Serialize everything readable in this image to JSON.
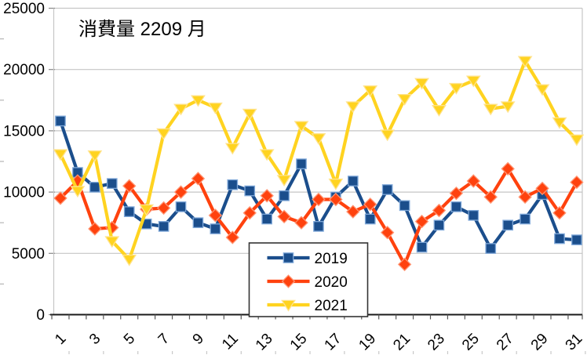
{
  "chart_data": {
    "type": "line",
    "title": "消費量 2209 月",
    "xlabel": "",
    "ylabel": "",
    "x": [
      1,
      2,
      3,
      4,
      5,
      6,
      7,
      8,
      9,
      10,
      11,
      12,
      13,
      14,
      15,
      16,
      17,
      18,
      19,
      20,
      21,
      22,
      23,
      24,
      25,
      26,
      27,
      28,
      29,
      30,
      31
    ],
    "x_tick_labels": [
      "1",
      "3",
      "5",
      "7",
      "9",
      "11",
      "13",
      "15",
      "17",
      "19",
      "21",
      "23",
      "25",
      "27",
      "29",
      "31"
    ],
    "x_tick_days": [
      1,
      3,
      5,
      7,
      9,
      11,
      13,
      15,
      17,
      19,
      21,
      23,
      25,
      27,
      29,
      31
    ],
    "x_label_rotation_deg": -45,
    "y_ticks": [
      0,
      5000,
      10000,
      15000,
      20000,
      25000
    ],
    "y_tick_labels": [
      "0",
      "5000",
      "10000",
      "15000",
      "20000",
      "25000"
    ],
    "ylim": [
      0,
      25000
    ],
    "grid": true,
    "grid_color": "#c6c6c6",
    "axis_color": "#1a1a1a",
    "background_color": "#ffffff",
    "legend_position": "inside-bottom-center",
    "legend_border_color": "#333333",
    "series": [
      {
        "name": "2019",
        "color": "#1B4E8C",
        "marker": "square",
        "marker_edge_color": "#7FA8D9",
        "values": [
          15800,
          11600,
          10400,
          10700,
          8400,
          7400,
          7200,
          8800,
          7500,
          7000,
          10600,
          10100,
          7800,
          9700,
          12300,
          7200,
          9600,
          10900,
          7800,
          10200,
          8900,
          5500,
          7300,
          8800,
          8100,
          5400,
          7300,
          7800,
          9800,
          6200,
          6100
        ]
      },
      {
        "name": "2020",
        "color": "#FF420E",
        "marker": "diamond",
        "marker_edge_color": "#FF9472",
        "values": [
          9500,
          10900,
          7000,
          7100,
          10500,
          8600,
          8700,
          10000,
          11100,
          8100,
          6300,
          8300,
          9700,
          8000,
          7500,
          9400,
          9400,
          8400,
          9000,
          6700,
          4100,
          7600,
          8500,
          9900,
          10900,
          9600,
          11900,
          9600,
          10300,
          8300,
          10800
        ]
      },
      {
        "name": "2021",
        "color": "#FFD320",
        "marker": "triangle-down",
        "marker_edge_color": "#FFE38C",
        "values": [
          13100,
          10100,
          13000,
          6000,
          4500,
          8600,
          14800,
          16800,
          17500,
          16900,
          13600,
          16400,
          13100,
          11000,
          15400,
          14400,
          10700,
          17000,
          18300,
          14700,
          17600,
          18900,
          16700,
          18500,
          19100,
          16800,
          17000,
          20700,
          18400,
          15700,
          14300
        ]
      }
    ]
  }
}
